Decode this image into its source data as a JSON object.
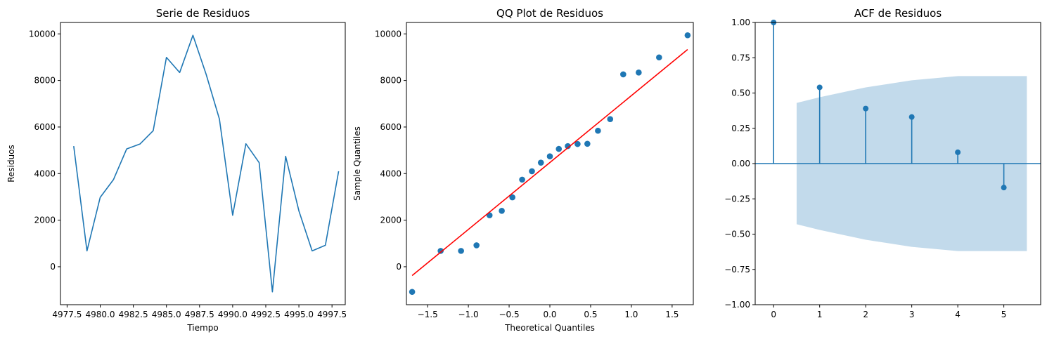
{
  "colors": {
    "series": "#1f77b4",
    "fit_line": "#ff0000",
    "confidence_band": "#1f77b4"
  },
  "chart_data": [
    {
      "type": "line",
      "title": "Serie de Residuos",
      "xlabel": "Tiempo",
      "ylabel": "Residuos",
      "x": [
        4978,
        4979,
        4980,
        4981,
        4982,
        4983,
        4984,
        4985,
        4986,
        4987,
        4988,
        4989,
        4990,
        4991,
        4992,
        4993,
        4994,
        4995,
        4996,
        4997,
        4998
      ],
      "series": [
        {
          "values": [
            5180,
            680,
            2980,
            3740,
            5060,
            5270,
            5840,
            8990,
            8340,
            9940,
            8260,
            6340,
            2210,
            5280,
            4470,
            -1080,
            4740,
            2400,
            680,
            920,
            4100
          ]
        }
      ],
      "xticks": [
        4977.5,
        4980.0,
        4982.5,
        4985.0,
        4987.5,
        4990.0,
        4992.5,
        4995.0,
        4997.5
      ],
      "xticklabels": [
        "4977.5",
        "4980.0",
        "4982.5",
        "4985.0",
        "4987.5",
        "4990.0",
        "4992.5",
        "4995.0",
        "4997.5"
      ],
      "yticks": [
        0,
        2000,
        4000,
        6000,
        8000,
        10000
      ],
      "yticklabels": [
        "0",
        "2000",
        "4000",
        "6000",
        "8000",
        "10000"
      ],
      "xlim": [
        4977.0,
        4998.5
      ],
      "ylim": [
        -1630,
        10490
      ],
      "grid": false
    },
    {
      "type": "scatter",
      "title": "QQ Plot de Residuos",
      "xlabel": "Theoretical Quantiles",
      "ylabel": "Sample Quantiles",
      "x": [
        -1.69,
        -1.34,
        -1.09,
        -0.9,
        -0.74,
        -0.59,
        -0.46,
        -0.34,
        -0.22,
        -0.11,
        0.0,
        0.11,
        0.22,
        0.34,
        0.46,
        0.59,
        0.74,
        0.9,
        1.09,
        1.34,
        1.69
      ],
      "series": [
        {
          "values": [
            -1080,
            680,
            680,
            920,
            2210,
            2400,
            2980,
            3740,
            4100,
            4470,
            4740,
            5060,
            5180,
            5270,
            5280,
            5840,
            6340,
            8260,
            8340,
            8990,
            9940
          ]
        }
      ],
      "fit_line": {
        "x": [
          -1.69,
          1.69
        ],
        "y": [
          -380,
          9330
        ]
      },
      "xticks": [
        -1.5,
        -1.0,
        -0.5,
        0.0,
        0.5,
        1.0,
        1.5
      ],
      "xticklabels": [
        "−1.5",
        "−1.0",
        "−0.5",
        "0.0",
        "0.5",
        "1.0",
        "1.5"
      ],
      "yticks": [
        0,
        2000,
        4000,
        6000,
        8000,
        10000
      ],
      "yticklabels": [
        "0",
        "2000",
        "4000",
        "6000",
        "8000",
        "10000"
      ],
      "xlim": [
        -1.76,
        1.76
      ],
      "ylim": [
        -1630,
        10490
      ],
      "grid": false
    },
    {
      "type": "stem",
      "title": "ACF de Residuos",
      "xlabel": "",
      "ylabel": "",
      "lags": [
        0,
        1,
        2,
        3,
        4,
        5
      ],
      "values": [
        1.0,
        0.54,
        0.39,
        0.33,
        0.08,
        -0.17
      ],
      "confidence_band": {
        "x": [
          0.5,
          1,
          2,
          3,
          4,
          5,
          5.5
        ],
        "upper": [
          0.43,
          0.47,
          0.54,
          0.59,
          0.62,
          0.62,
          0.62
        ]
      },
      "xticks": [
        0,
        1,
        2,
        3,
        4,
        5
      ],
      "xticklabels": [
        "0",
        "1",
        "2",
        "3",
        "4",
        "5"
      ],
      "yticks": [
        -1.0,
        -0.75,
        -0.5,
        -0.25,
        0.0,
        0.25,
        0.5,
        0.75,
        1.0
      ],
      "yticklabels": [
        "−1.00",
        "−0.75",
        "−0.50",
        "−0.25",
        "0.00",
        "0.25",
        "0.50",
        "0.75",
        "1.00"
      ],
      "xlim": [
        -0.4,
        5.8
      ],
      "ylim": [
        -1.0,
        1.0
      ],
      "grid": false
    }
  ]
}
